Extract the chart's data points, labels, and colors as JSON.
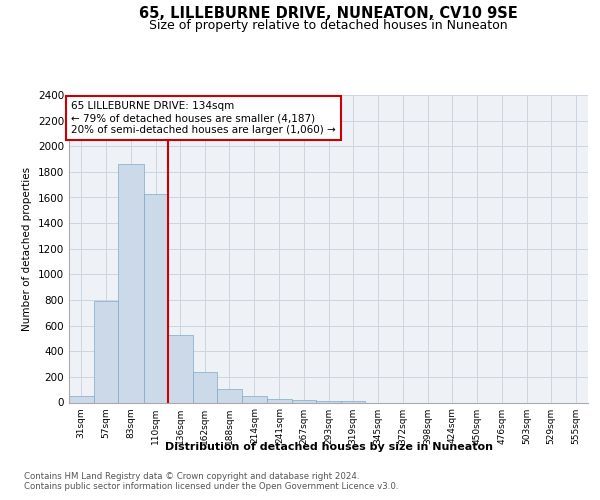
{
  "title": "65, LILLEBURNE DRIVE, NUNEATON, CV10 9SE",
  "subtitle": "Size of property relative to detached houses in Nuneaton",
  "xlabel": "Distribution of detached houses by size in Nuneaton",
  "ylabel": "Number of detached properties",
  "footer_line1": "Contains HM Land Registry data © Crown copyright and database right 2024.",
  "footer_line2": "Contains public sector information licensed under the Open Government Licence v3.0.",
  "bin_labels": [
    "31sqm",
    "57sqm",
    "83sqm",
    "110sqm",
    "136sqm",
    "162sqm",
    "188sqm",
    "214sqm",
    "241sqm",
    "267sqm",
    "293sqm",
    "319sqm",
    "345sqm",
    "372sqm",
    "398sqm",
    "424sqm",
    "450sqm",
    "476sqm",
    "503sqm",
    "529sqm",
    "555sqm"
  ],
  "bar_heights": [
    50,
    790,
    1860,
    1630,
    530,
    235,
    105,
    50,
    30,
    20,
    15,
    15,
    0,
    0,
    0,
    0,
    0,
    0,
    0,
    0
  ],
  "bar_color": "#ccd9e8",
  "bar_edge_color": "#7fa8c8",
  "vline_x_index": 4,
  "vline_color": "#cc0000",
  "annotation_title": "65 LILLEBURNE DRIVE: 134sqm",
  "annotation_line1": "← 79% of detached houses are smaller (4,187)",
  "annotation_line2": "20% of semi-detached houses are larger (1,060) →",
  "annotation_box_color": "#cc0000",
  "bin_edges": [
    31,
    57,
    83,
    110,
    136,
    162,
    188,
    214,
    241,
    267,
    293,
    319,
    345,
    372,
    398,
    424,
    450,
    476,
    503,
    529,
    555,
    581
  ],
  "ylim": [
    0,
    2400
  ],
  "yticks": [
    0,
    200,
    400,
    600,
    800,
    1000,
    1200,
    1400,
    1600,
    1800,
    2000,
    2200,
    2400
  ],
  "grid_color": "#ccd6e0",
  "background_color": "#eef2f7",
  "title_fontsize": 10.5,
  "subtitle_fontsize": 9
}
